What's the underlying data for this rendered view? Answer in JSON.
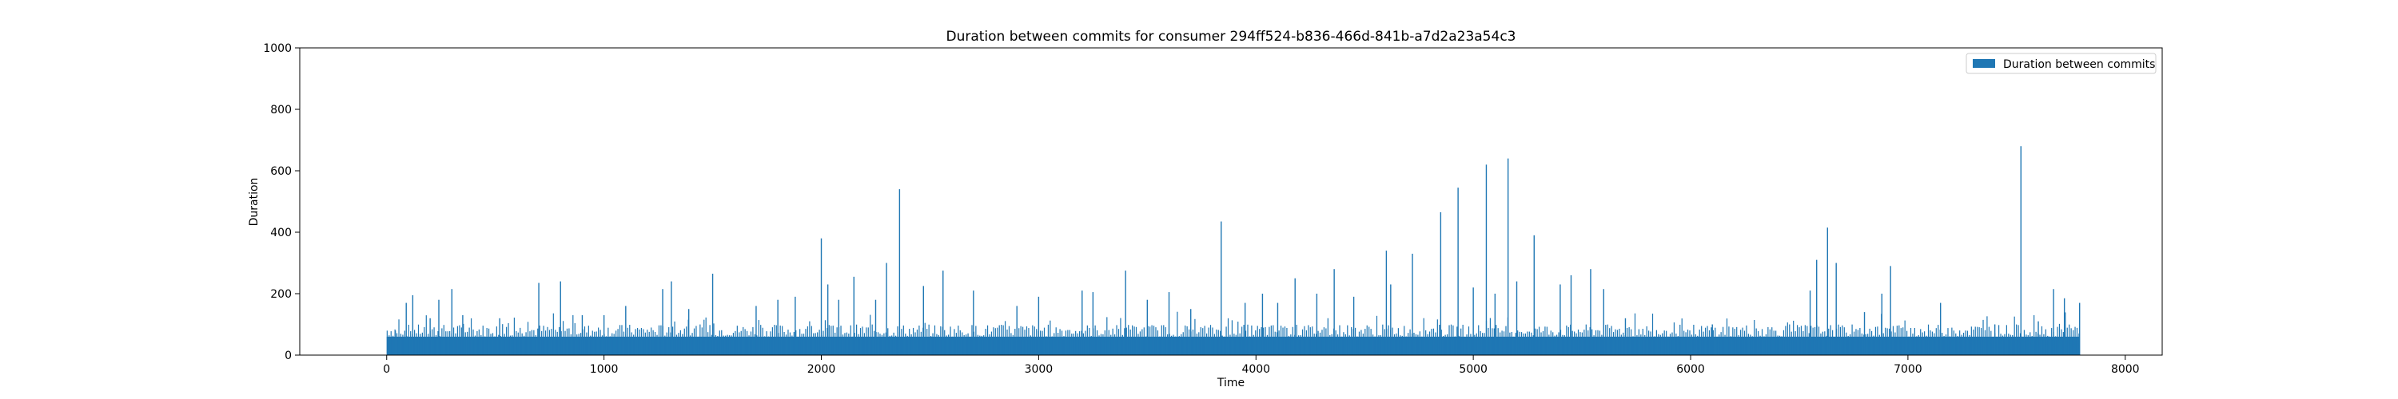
{
  "chart_data": {
    "type": "bar",
    "title": "Duration between commits for consumer 294ff524-b836-466d-841b-a7d2a23a54c3",
    "xlabel": "Time",
    "ylabel": "Duration",
    "xlim": [
      -400,
      8170
    ],
    "ylim": [
      0,
      1000
    ],
    "xticks": [
      0,
      1000,
      2000,
      3000,
      4000,
      5000,
      6000,
      7000,
      8000
    ],
    "yticks": [
      0,
      200,
      400,
      600,
      800,
      1000
    ],
    "grid": false,
    "legend_position": "top-right",
    "bar_color": "#1f77b4",
    "series": [
      {
        "name": "Duration between commits",
        "x_range": [
          0,
          7790
        ],
        "baseline": 60,
        "spikes": [
          {
            "x": 40,
            "value": 80
          },
          {
            "x": 90,
            "value": 170
          },
          {
            "x": 120,
            "value": 195
          },
          {
            "x": 200,
            "value": 120
          },
          {
            "x": 240,
            "value": 180
          },
          {
            "x": 300,
            "value": 215
          },
          {
            "x": 350,
            "value": 130
          },
          {
            "x": 520,
            "value": 120
          },
          {
            "x": 700,
            "value": 235
          },
          {
            "x": 800,
            "value": 240
          },
          {
            "x": 900,
            "value": 130
          },
          {
            "x": 1000,
            "value": 130
          },
          {
            "x": 1100,
            "value": 160
          },
          {
            "x": 1270,
            "value": 215
          },
          {
            "x": 1310,
            "value": 240
          },
          {
            "x": 1390,
            "value": 150
          },
          {
            "x": 1500,
            "value": 265
          },
          {
            "x": 1700,
            "value": 160
          },
          {
            "x": 1800,
            "value": 180
          },
          {
            "x": 1880,
            "value": 190
          },
          {
            "x": 2000,
            "value": 380
          },
          {
            "x": 2030,
            "value": 230
          },
          {
            "x": 2080,
            "value": 180
          },
          {
            "x": 2150,
            "value": 255
          },
          {
            "x": 2250,
            "value": 180
          },
          {
            "x": 2300,
            "value": 300
          },
          {
            "x": 2360,
            "value": 540
          },
          {
            "x": 2470,
            "value": 225
          },
          {
            "x": 2560,
            "value": 275
          },
          {
            "x": 2700,
            "value": 210
          },
          {
            "x": 2900,
            "value": 160
          },
          {
            "x": 3000,
            "value": 190
          },
          {
            "x": 3200,
            "value": 210
          },
          {
            "x": 3250,
            "value": 205
          },
          {
            "x": 3400,
            "value": 275
          },
          {
            "x": 3500,
            "value": 180
          },
          {
            "x": 3600,
            "value": 205
          },
          {
            "x": 3700,
            "value": 150
          },
          {
            "x": 3840,
            "value": 435
          },
          {
            "x": 3950,
            "value": 170
          },
          {
            "x": 4030,
            "value": 200
          },
          {
            "x": 4100,
            "value": 170
          },
          {
            "x": 4180,
            "value": 250
          },
          {
            "x": 4280,
            "value": 200
          },
          {
            "x": 4360,
            "value": 280
          },
          {
            "x": 4450,
            "value": 190
          },
          {
            "x": 4600,
            "value": 340
          },
          {
            "x": 4620,
            "value": 230
          },
          {
            "x": 4720,
            "value": 330
          },
          {
            "x": 4850,
            "value": 465
          },
          {
            "x": 4930,
            "value": 545
          },
          {
            "x": 5000,
            "value": 220
          },
          {
            "x": 5060,
            "value": 620
          },
          {
            "x": 5100,
            "value": 200
          },
          {
            "x": 5160,
            "value": 640
          },
          {
            "x": 5200,
            "value": 240
          },
          {
            "x": 5280,
            "value": 390
          },
          {
            "x": 5400,
            "value": 230
          },
          {
            "x": 5450,
            "value": 260
          },
          {
            "x": 5540,
            "value": 280
          },
          {
            "x": 5600,
            "value": 215
          },
          {
            "x": 5700,
            "value": 120
          },
          {
            "x": 6100,
            "value": 100
          },
          {
            "x": 6550,
            "value": 210
          },
          {
            "x": 6580,
            "value": 310
          },
          {
            "x": 6630,
            "value": 415
          },
          {
            "x": 6670,
            "value": 300
          },
          {
            "x": 6800,
            "value": 140
          },
          {
            "x": 6880,
            "value": 200
          },
          {
            "x": 6920,
            "value": 290
          },
          {
            "x": 7150,
            "value": 170
          },
          {
            "x": 7400,
            "value": 100
          },
          {
            "x": 7520,
            "value": 680
          },
          {
            "x": 7600,
            "value": 110
          },
          {
            "x": 7670,
            "value": 215
          },
          {
            "x": 7720,
            "value": 185
          },
          {
            "x": 7790,
            "value": 170
          }
        ]
      }
    ]
  }
}
